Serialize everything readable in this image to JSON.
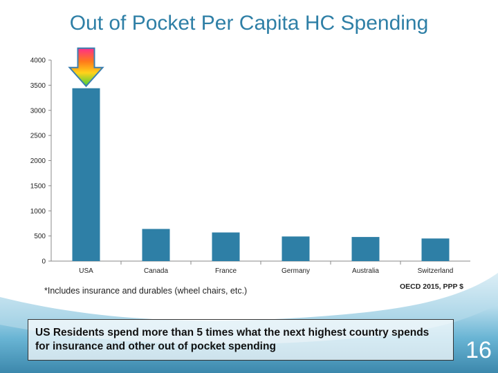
{
  "slide": {
    "title": "Out of Pocket Per Capita HC Spending",
    "footnote": "*Includes insurance and durables (wheel chairs, etc.)",
    "source": "OECD 2015, PPP $",
    "callout": "US Residents spend more than 5 times what the next highest country spends for insurance and other out of pocket spending",
    "page_number": "16",
    "colors": {
      "bar": "#2E7FA6",
      "title": "#2E7FA6",
      "wave": "#4A9FC4"
    },
    "arrow_icon": "gradient-down-arrow-icon"
  },
  "chart_data": {
    "type": "bar",
    "categories": [
      "USA",
      "Canada",
      "France",
      "Germany",
      "Australia",
      "Switzerland"
    ],
    "values": [
      3440,
      640,
      570,
      490,
      480,
      450
    ],
    "title": "Out of Pocket Per Capita HC Spending",
    "xlabel": "",
    "ylabel": "",
    "ylim": [
      0,
      4000
    ],
    "yticks": [
      0,
      500,
      1000,
      1500,
      2000,
      2500,
      3000,
      3500,
      4000
    ],
    "grid": false,
    "legend": "none"
  }
}
